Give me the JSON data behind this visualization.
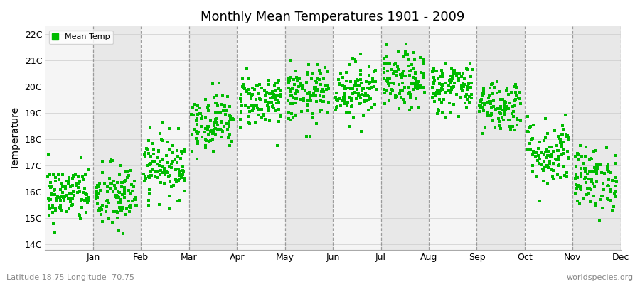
{
  "title": "Monthly Mean Temperatures 1901 - 2009",
  "ylabel": "Temperature",
  "xlabel_labels": [
    "Jan",
    "Feb",
    "Mar",
    "Apr",
    "May",
    "Jun",
    "Jul",
    "Aug",
    "Sep",
    "Oct",
    "Nov",
    "Dec"
  ],
  "ytick_labels": [
    "14C",
    "15C",
    "16C",
    "17C",
    "18C",
    "19C",
    "20C",
    "21C",
    "22C"
  ],
  "ytick_values": [
    14,
    15,
    16,
    17,
    18,
    19,
    20,
    21,
    22
  ],
  "ylim": [
    13.8,
    22.3
  ],
  "dot_color": "#00bb00",
  "bg_color_light": "#f5f5f5",
  "bg_color_dark": "#e8e8e8",
  "fig_bg": "#ffffff",
  "legend_label": "Mean Temp",
  "subtitle_left": "Latitude 18.75 Longitude -70.75",
  "subtitle_right": "worldspecies.org",
  "monthly_means": [
    15.9,
    15.8,
    17.0,
    18.7,
    19.5,
    19.7,
    19.9,
    20.2,
    20.0,
    19.3,
    17.5,
    16.5
  ],
  "monthly_stds": [
    0.55,
    0.65,
    0.6,
    0.55,
    0.5,
    0.55,
    0.55,
    0.55,
    0.5,
    0.5,
    0.65,
    0.6
  ],
  "n_years": 109,
  "random_seed": 42
}
